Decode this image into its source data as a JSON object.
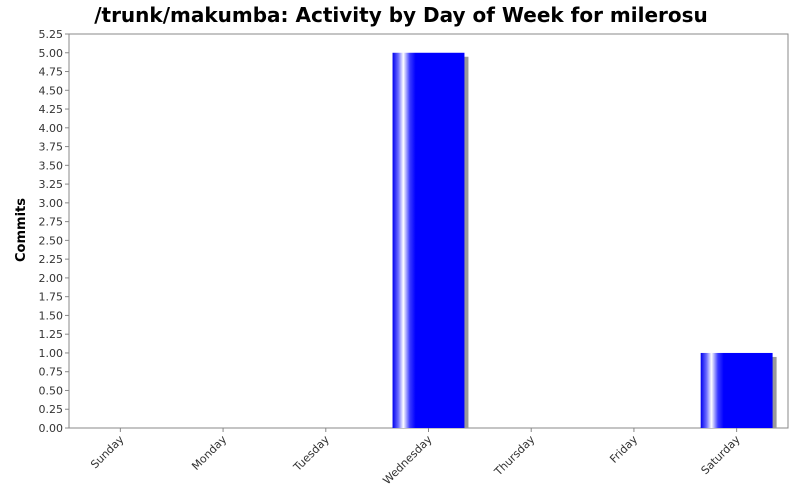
{
  "chart_data": {
    "type": "bar",
    "title": "/trunk/makumba: Activity by Day of Week for milerosu",
    "xlabel": "",
    "ylabel": "Commits",
    "categories": [
      "Sunday",
      "Monday",
      "Tuesday",
      "Wednesday",
      "Thursday",
      "Friday",
      "Saturday"
    ],
    "values": [
      0,
      0,
      0,
      5,
      0,
      0,
      1
    ],
    "ylim": [
      0,
      5.25
    ],
    "yticks": [
      "0.00",
      "0.25",
      "0.50",
      "0.75",
      "1.00",
      "1.25",
      "1.50",
      "1.75",
      "2.00",
      "2.25",
      "2.50",
      "2.75",
      "3.00",
      "3.25",
      "3.50",
      "3.75",
      "4.00",
      "4.25",
      "4.50",
      "4.75",
      "5.00",
      "5.25"
    ],
    "grid": false,
    "legend": "none",
    "bar_color": "#0000ff",
    "shadow_color": "#999999"
  }
}
